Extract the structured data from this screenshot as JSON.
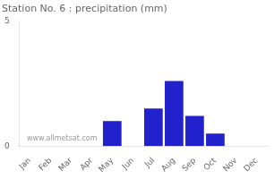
{
  "chart_data": {
    "type": "bar",
    "title": "Station No. 6 : precipitation (mm)",
    "categories": [
      "Jan",
      "Feb",
      "Mar",
      "Apr",
      "May",
      "Jun",
      "Jul",
      "Aug",
      "Sep",
      "Oct",
      "Nov",
      "Dec"
    ],
    "values": [
      0,
      0,
      0,
      0,
      1.0,
      0,
      1.5,
      2.6,
      1.2,
      0.5,
      0,
      0
    ],
    "color": "#2222cc",
    "ylim": [
      0,
      5
    ],
    "yticks": [
      0,
      5
    ],
    "grid": false,
    "annotation": "www.allmetsat.com"
  }
}
